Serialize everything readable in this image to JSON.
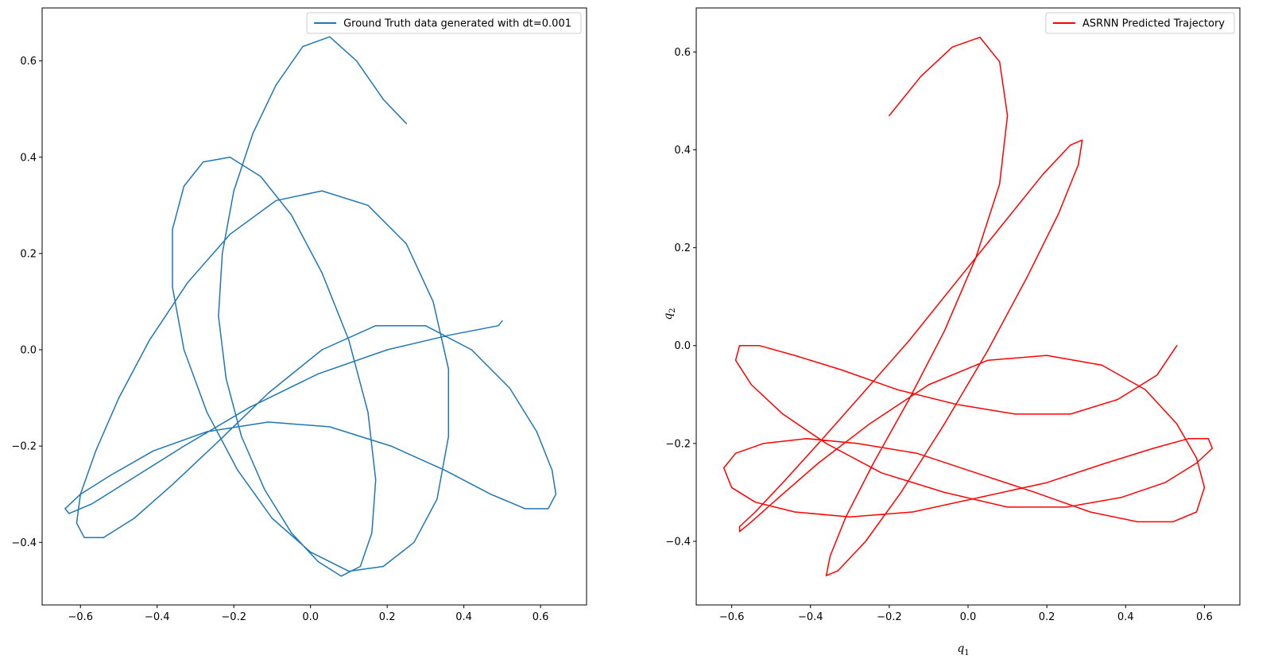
{
  "chart_data": [
    {
      "type": "line",
      "title": "",
      "xlabel": "",
      "ylabel": "",
      "xlim": [
        -0.7,
        0.72
      ],
      "ylim": [
        -0.53,
        0.71
      ],
      "x_ticks": [
        -0.6,
        -0.4,
        -0.2,
        0.0,
        0.2,
        0.4,
        0.6
      ],
      "x_tick_labels": [
        "−0.6",
        "−0.4",
        "−0.2",
        "0.0",
        "0.2",
        "0.4",
        "0.6"
      ],
      "y_ticks": [
        -0.4,
        -0.2,
        0.0,
        0.2,
        0.4,
        0.6
      ],
      "y_tick_labels": [
        "−0.4",
        "−0.2",
        "0.0",
        "0.2",
        "0.4",
        "0.6"
      ],
      "grid": false,
      "legend_position": "top-right",
      "series": [
        {
          "name": "Ground Truth data generated with dt=0.001",
          "color": "#1f77b4",
          "x": [
            0.25,
            0.19,
            0.12,
            0.05,
            -0.02,
            -0.09,
            -0.15,
            -0.2,
            -0.23,
            -0.24,
            -0.22,
            -0.18,
            -0.12,
            -0.05,
            0.02,
            0.08,
            0.13,
            0.16,
            0.17,
            0.15,
            0.1,
            0.03,
            -0.05,
            -0.13,
            -0.21,
            -0.28,
            -0.33,
            -0.36,
            -0.36,
            -0.33,
            -0.27,
            -0.19,
            -0.1,
            0.0,
            0.1,
            0.19,
            0.27,
            0.33,
            0.36,
            0.36,
            0.32,
            0.25,
            0.15,
            0.03,
            -0.09,
            -0.21,
            -0.32,
            -0.42,
            -0.5,
            -0.56,
            -0.6,
            -0.61,
            -0.59,
            -0.54,
            -0.46,
            -0.36,
            -0.24,
            -0.11,
            0.03,
            0.17,
            0.3,
            0.42,
            0.52,
            0.59,
            0.63,
            0.64,
            0.62,
            0.56,
            0.47,
            0.35,
            0.21,
            0.05,
            -0.11,
            -0.27,
            -0.41,
            -0.52,
            -0.6,
            -0.64,
            -0.63,
            -0.57,
            -0.47,
            -0.33,
            -0.16,
            0.02,
            0.2,
            0.36,
            0.49,
            0.5
          ],
          "y": [
            0.47,
            0.52,
            0.6,
            0.65,
            0.63,
            0.55,
            0.45,
            0.33,
            0.2,
            0.07,
            -0.06,
            -0.18,
            -0.29,
            -0.38,
            -0.44,
            -0.47,
            -0.45,
            -0.38,
            -0.27,
            -0.13,
            0.02,
            0.16,
            0.28,
            0.36,
            0.4,
            0.39,
            0.34,
            0.25,
            0.13,
            0.0,
            -0.13,
            -0.25,
            -0.35,
            -0.42,
            -0.46,
            -0.45,
            -0.4,
            -0.31,
            -0.18,
            -0.04,
            0.1,
            0.22,
            0.3,
            0.33,
            0.31,
            0.24,
            0.14,
            0.02,
            -0.1,
            -0.21,
            -0.3,
            -0.36,
            -0.39,
            -0.39,
            -0.35,
            -0.28,
            -0.19,
            -0.09,
            0.0,
            0.05,
            0.05,
            0.0,
            -0.08,
            -0.17,
            -0.25,
            -0.3,
            -0.33,
            -0.33,
            -0.3,
            -0.25,
            -0.2,
            -0.16,
            -0.15,
            -0.17,
            -0.21,
            -0.26,
            -0.3,
            -0.33,
            -0.34,
            -0.32,
            -0.27,
            -0.2,
            -0.12,
            -0.05,
            0.0,
            0.03,
            0.05,
            0.06
          ]
        }
      ]
    },
    {
      "type": "line",
      "title": "",
      "xlabel": "q",
      "xlabel_sub": "1",
      "ylabel": "q",
      "ylabel_sub": "2",
      "xlim": [
        -0.69,
        0.69
      ],
      "ylim": [
        -0.53,
        0.69
      ],
      "x_ticks": [
        -0.6,
        -0.4,
        -0.2,
        0.0,
        0.2,
        0.4,
        0.6
      ],
      "x_tick_labels": [
        "−0.6",
        "−0.4",
        "−0.2",
        "0.0",
        "0.2",
        "0.4",
        "0.6"
      ],
      "y_ticks": [
        -0.4,
        -0.2,
        0.0,
        0.2,
        0.4,
        0.6
      ],
      "y_tick_labels": [
        "−0.4",
        "−0.2",
        "0.0",
        "0.2",
        "0.4",
        "0.6"
      ],
      "grid": false,
      "legend_position": "top-right",
      "series": [
        {
          "name": "ASRNN Predicted Trajectory",
          "color": "#ff0000",
          "x": [
            -0.2,
            -0.12,
            -0.04,
            0.03,
            0.08,
            0.1,
            0.08,
            0.02,
            -0.06,
            -0.15,
            -0.24,
            -0.31,
            -0.35,
            -0.36,
            -0.33,
            -0.26,
            -0.17,
            -0.06,
            0.05,
            0.15,
            0.23,
            0.28,
            0.29,
            0.26,
            0.19,
            0.09,
            -0.03,
            -0.15,
            -0.27,
            -0.38,
            -0.47,
            -0.54,
            -0.58,
            -0.58,
            -0.55,
            -0.48,
            -0.38,
            -0.25,
            -0.1,
            0.05,
            0.2,
            0.34,
            0.45,
            0.53,
            0.58,
            0.6,
            0.58,
            0.52,
            0.43,
            0.31,
            0.17,
            0.02,
            -0.13,
            -0.28,
            -0.41,
            -0.52,
            -0.59,
            -0.62,
            -0.6,
            -0.54,
            -0.44,
            -0.3,
            -0.14,
            0.03,
            0.2,
            0.35,
            0.47,
            0.56,
            0.61,
            0.62,
            0.58,
            0.5,
            0.39,
            0.25,
            0.1,
            -0.06,
            -0.22,
            -0.36,
            -0.47,
            -0.55,
            -0.59,
            -0.58,
            -0.53,
            -0.44,
            -0.32,
            -0.18,
            -0.03,
            0.12,
            0.26,
            0.38,
            0.48,
            0.53
          ],
          "y": [
            0.47,
            0.55,
            0.61,
            0.63,
            0.58,
            0.47,
            0.33,
            0.18,
            0.03,
            -0.11,
            -0.24,
            -0.35,
            -0.43,
            -0.47,
            -0.46,
            -0.4,
            -0.3,
            -0.16,
            -0.01,
            0.14,
            0.27,
            0.37,
            0.42,
            0.41,
            0.35,
            0.25,
            0.13,
            0.01,
            -0.1,
            -0.2,
            -0.28,
            -0.34,
            -0.37,
            -0.38,
            -0.36,
            -0.31,
            -0.24,
            -0.16,
            -0.08,
            -0.03,
            -0.02,
            -0.04,
            -0.09,
            -0.16,
            -0.23,
            -0.29,
            -0.34,
            -0.36,
            -0.36,
            -0.34,
            -0.3,
            -0.26,
            -0.22,
            -0.2,
            -0.19,
            -0.2,
            -0.22,
            -0.25,
            -0.29,
            -0.32,
            -0.34,
            -0.35,
            -0.34,
            -0.31,
            -0.28,
            -0.24,
            -0.21,
            -0.19,
            -0.19,
            -0.21,
            -0.24,
            -0.28,
            -0.31,
            -0.33,
            -0.33,
            -0.3,
            -0.26,
            -0.2,
            -0.14,
            -0.08,
            -0.03,
            0.0,
            0.0,
            -0.02,
            -0.05,
            -0.09,
            -0.12,
            -0.14,
            -0.14,
            -0.11,
            -0.06,
            0.0
          ]
        }
      ]
    }
  ]
}
